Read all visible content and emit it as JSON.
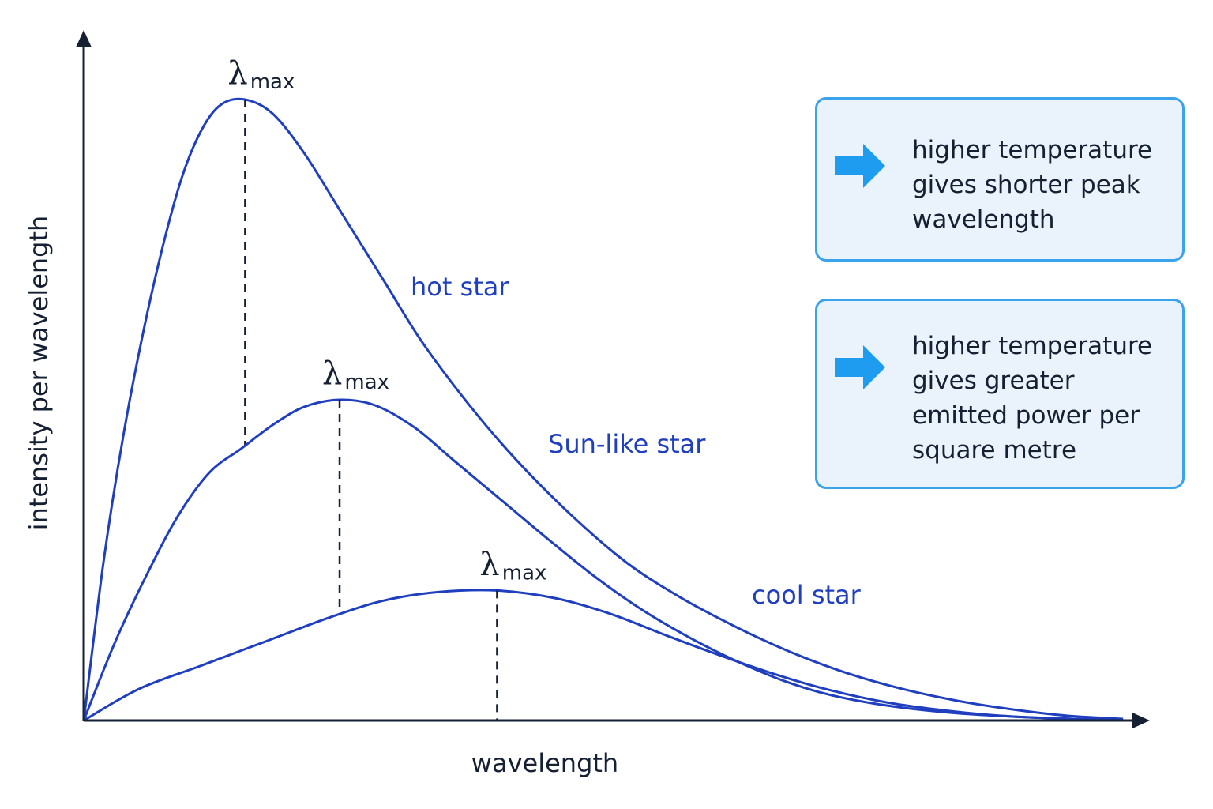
{
  "colors": {
    "curve": "#1f3fbf",
    "axis": "#152033",
    "callout_border": "#3ba3ec",
    "callout_fill": "#eaf3fb",
    "arrow": "#1e9cf0"
  },
  "chart_data": {
    "type": "line",
    "title": "",
    "xlabel": "wavelength",
    "ylabel": "intensity per wavelength",
    "x_ticks": "none",
    "y_ticks": "none",
    "grid": false,
    "xlim": [
      0,
      13.4
    ],
    "ylim": [
      0,
      7.9
    ],
    "peak_marker": {
      "symbol": "λ",
      "subscript": "max"
    },
    "series": [
      {
        "name": "hot star",
        "peak": {
          "x": 2.05,
          "y": 7.88
        },
        "points": [
          [
            0,
            0
          ],
          [
            0.25,
            2.0
          ],
          [
            0.5,
            3.6
          ],
          [
            0.75,
            4.9
          ],
          [
            1.0,
            6.0
          ],
          [
            1.25,
            6.9
          ],
          [
            1.5,
            7.5
          ],
          [
            1.75,
            7.82
          ],
          [
            2.05,
            7.88
          ],
          [
            2.4,
            7.7
          ],
          [
            2.8,
            7.2
          ],
          [
            3.3,
            6.4
          ],
          [
            3.8,
            5.6
          ],
          [
            4.3,
            4.8
          ],
          [
            4.9,
            4.0
          ],
          [
            5.5,
            3.3
          ],
          [
            6.2,
            2.6
          ],
          [
            6.9,
            2.0
          ],
          [
            7.6,
            1.55
          ],
          [
            8.3,
            1.18
          ],
          [
            9.0,
            0.86
          ],
          [
            9.7,
            0.6
          ],
          [
            10.4,
            0.4
          ],
          [
            11.1,
            0.25
          ],
          [
            11.8,
            0.14
          ],
          [
            12.5,
            0.06
          ],
          [
            13.2,
            0.02
          ]
        ]
      },
      {
        "name": "Sun-like star",
        "peak": {
          "x": 3.25,
          "y": 4.07
        },
        "points": [
          [
            0,
            0
          ],
          [
            0.4,
            1.0
          ],
          [
            0.8,
            1.85
          ],
          [
            1.2,
            2.6
          ],
          [
            1.6,
            3.15
          ],
          [
            2.0,
            3.45
          ],
          [
            2.4,
            3.75
          ],
          [
            2.8,
            3.98
          ],
          [
            3.25,
            4.07
          ],
          [
            3.7,
            4.0
          ],
          [
            4.2,
            3.72
          ],
          [
            4.7,
            3.3
          ],
          [
            5.3,
            2.8
          ],
          [
            5.9,
            2.3
          ],
          [
            6.5,
            1.82
          ],
          [
            7.1,
            1.4
          ],
          [
            7.7,
            1.05
          ],
          [
            8.3,
            0.75
          ],
          [
            8.9,
            0.5
          ],
          [
            9.5,
            0.32
          ],
          [
            10.2,
            0.19
          ],
          [
            11.0,
            0.1
          ],
          [
            11.8,
            0.05
          ],
          [
            12.6,
            0.02
          ],
          [
            13.2,
            0.01
          ]
        ]
      },
      {
        "name": "cool star",
        "peak": {
          "x": 5.25,
          "y": 1.65
        },
        "points": [
          [
            0,
            0
          ],
          [
            0.7,
            0.4
          ],
          [
            1.5,
            0.7
          ],
          [
            2.3,
            1.0
          ],
          [
            3.1,
            1.3
          ],
          [
            3.8,
            1.52
          ],
          [
            4.5,
            1.63
          ],
          [
            5.25,
            1.65
          ],
          [
            6.0,
            1.55
          ],
          [
            6.7,
            1.35
          ],
          [
            7.4,
            1.08
          ],
          [
            8.1,
            0.82
          ],
          [
            8.8,
            0.58
          ],
          [
            9.5,
            0.38
          ],
          [
            10.2,
            0.23
          ],
          [
            11.0,
            0.12
          ],
          [
            11.8,
            0.05
          ],
          [
            12.6,
            0.02
          ],
          [
            13.2,
            0.01
          ]
        ]
      }
    ]
  },
  "callouts": [
    {
      "text": "higher temperature\ngives shorter peak\nwavelength"
    },
    {
      "text": "higher temperature\ngives greater\nemitted power per\nsquare metre"
    }
  ]
}
